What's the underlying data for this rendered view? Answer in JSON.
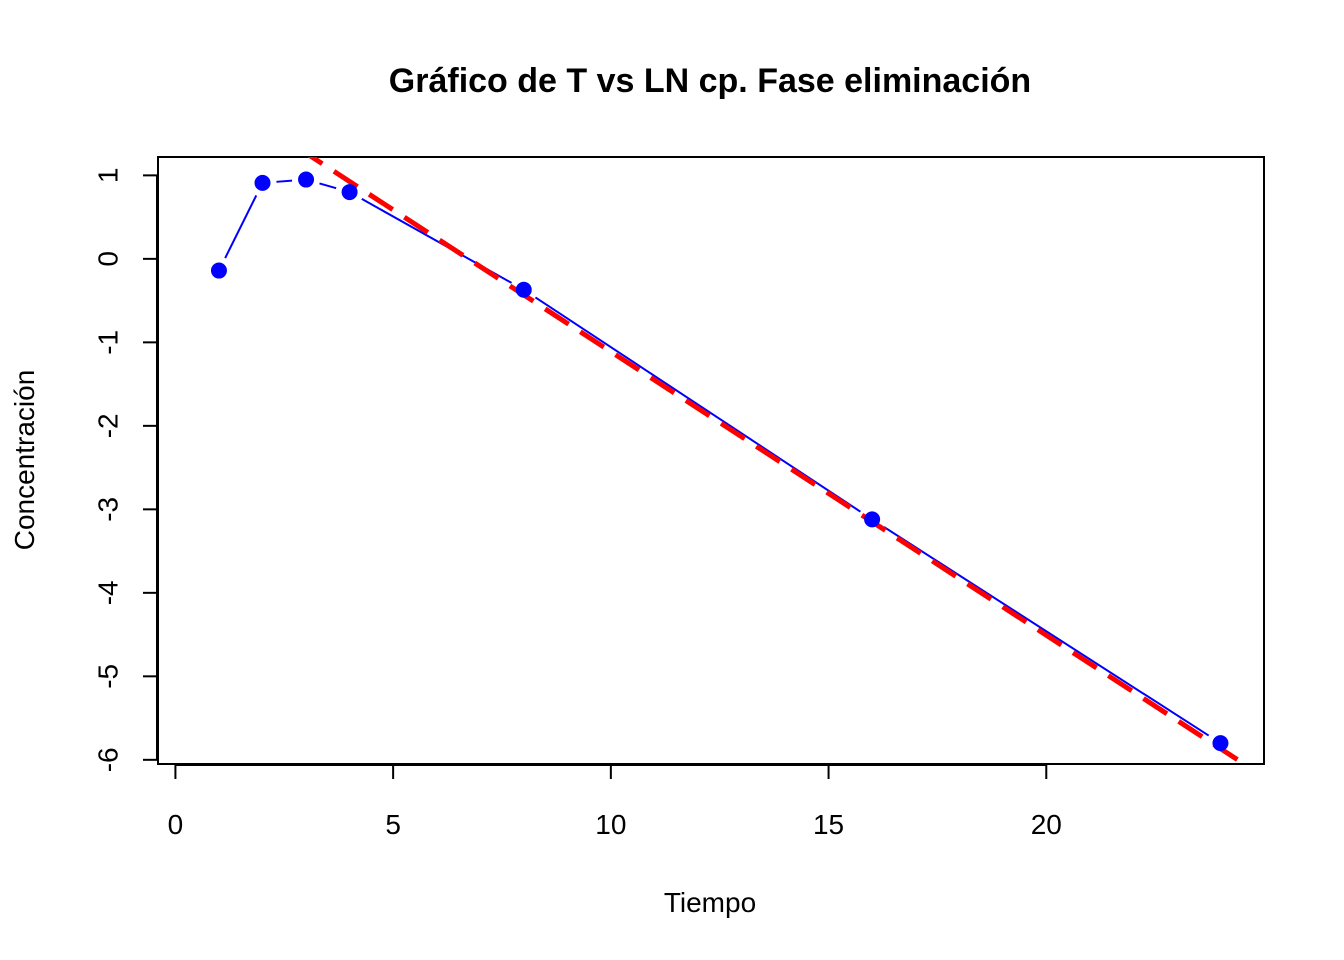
{
  "chart_data": {
    "type": "line",
    "title": "Gráfico de T vs LN cp. Fase eliminación",
    "xlabel": "Tiempo",
    "ylabel": "Concentración",
    "xlim": [
      -0.4,
      25
    ],
    "ylim": [
      -6.05,
      1.22
    ],
    "xticks": [
      0,
      5,
      10,
      15,
      20
    ],
    "yticks": [
      1,
      0,
      -1,
      -2,
      -3,
      -4,
      -5,
      -6
    ],
    "grid": false,
    "legend": "none",
    "series": [
      {
        "style": "points-and-lines",
        "color": "#0000ff",
        "x": [
          1,
          2,
          3,
          4,
          8,
          16,
          24
        ],
        "y": [
          -0.14,
          0.91,
          0.95,
          0.8,
          -0.37,
          -3.12,
          -5.8
        ]
      }
    ],
    "regression_line": {
      "style": "dashed",
      "color": "#ff0000",
      "intercept": 2.285,
      "slope": -0.3396
    }
  }
}
